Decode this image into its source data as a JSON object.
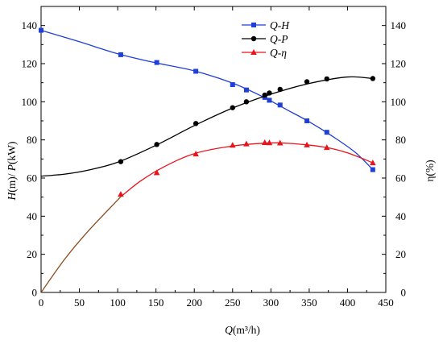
{
  "chart_data": {
    "type": "line",
    "xlabel": {
      "italic": "Q",
      "rest": "(m³/h)"
    },
    "ylabel_left": {
      "p1": "H",
      "p2": "(m)/ ",
      "p3": "P",
      "p4": "(kW)"
    },
    "ylabel_right": "η(%)",
    "xlim": [
      0,
      450
    ],
    "ylim": [
      0,
      150
    ],
    "ylim_right": [
      0,
      150
    ],
    "x_ticks": [
      "0",
      "50",
      "100",
      "150",
      "200",
      "250",
      "300",
      "350",
      "400",
      "450"
    ],
    "y_ticks": [
      "0",
      "20",
      "40",
      "60",
      "80",
      "100",
      "120",
      "140"
    ],
    "y_ticks_right": [
      "0",
      "20",
      "40",
      "60",
      "80",
      "100",
      "120",
      "140"
    ],
    "legend_position": "top-center",
    "grid": false,
    "series": [
      {
        "name": "Q-H",
        "axis": "left",
        "color": "#1f3fd6",
        "marker": "square",
        "points": [
          [
            0,
            137.5
          ],
          [
            104,
            124.7
          ],
          [
            151,
            120.6
          ],
          [
            202,
            116.0
          ],
          [
            250,
            109.0
          ],
          [
            268,
            106.2
          ],
          [
            292,
            102.3
          ],
          [
            298,
            100.8
          ],
          [
            312,
            98.3
          ],
          [
            347,
            90.0
          ],
          [
            373,
            84.0
          ],
          [
            433,
            64.4
          ]
        ],
        "curve": [
          [
            0,
            137.5
          ],
          [
            50,
            131.5
          ],
          [
            100,
            125.2
          ],
          [
            150,
            120.4
          ],
          [
            200,
            116.2
          ],
          [
            250,
            109.8
          ],
          [
            290,
            102.5
          ],
          [
            320,
            96.0
          ],
          [
            350,
            89.5
          ],
          [
            380,
            82.0
          ],
          [
            410,
            73.5
          ],
          [
            433,
            64.4
          ]
        ]
      },
      {
        "name": "Q-P",
        "axis": "left",
        "color": "#000000",
        "marker": "circle",
        "points": [
          [
            104,
            68.6
          ],
          [
            151,
            77.6
          ],
          [
            202,
            88.6
          ],
          [
            250,
            96.9
          ],
          [
            268,
            100.0
          ],
          [
            292,
            103.5
          ],
          [
            298,
            104.6
          ],
          [
            312,
            106.5
          ],
          [
            347,
            110.5
          ],
          [
            373,
            112.0
          ],
          [
            433,
            112.2
          ]
        ],
        "curve": [
          [
            0,
            61.0
          ],
          [
            30,
            62.0
          ],
          [
            60,
            64.0
          ],
          [
            100,
            68.3
          ],
          [
            150,
            77.2
          ],
          [
            200,
            87.5
          ],
          [
            250,
            96.7
          ],
          [
            300,
            104.0
          ],
          [
            350,
            109.6
          ],
          [
            400,
            113.0
          ],
          [
            433,
            112.2
          ]
        ]
      },
      {
        "name": "Q-η",
        "axis": "right",
        "color": "#e8141c",
        "marker": "triangle",
        "points": [
          [
            104,
            51.5
          ],
          [
            151,
            62.8
          ],
          [
            202,
            72.6
          ],
          [
            250,
            77.2
          ],
          [
            268,
            77.9
          ],
          [
            292,
            78.6
          ],
          [
            298,
            78.5
          ],
          [
            312,
            78.4
          ],
          [
            347,
            77.4
          ],
          [
            373,
            76.0
          ],
          [
            433,
            68.0
          ]
        ],
        "curve": [
          [
            0,
            0
          ],
          [
            30,
            17.0
          ],
          [
            60,
            31.5
          ],
          [
            104,
            50.2
          ],
          [
            130,
            58.5
          ],
          [
            160,
            65.8
          ],
          [
            200,
            72.8
          ],
          [
            250,
            76.8
          ],
          [
            300,
            78.4
          ],
          [
            330,
            78.0
          ],
          [
            370,
            76.2
          ],
          [
            400,
            73.2
          ],
          [
            433,
            68.0
          ]
        ],
        "low_segment_color": "#8b4a1c",
        "low_segment_until_x": 104
      }
    ]
  }
}
